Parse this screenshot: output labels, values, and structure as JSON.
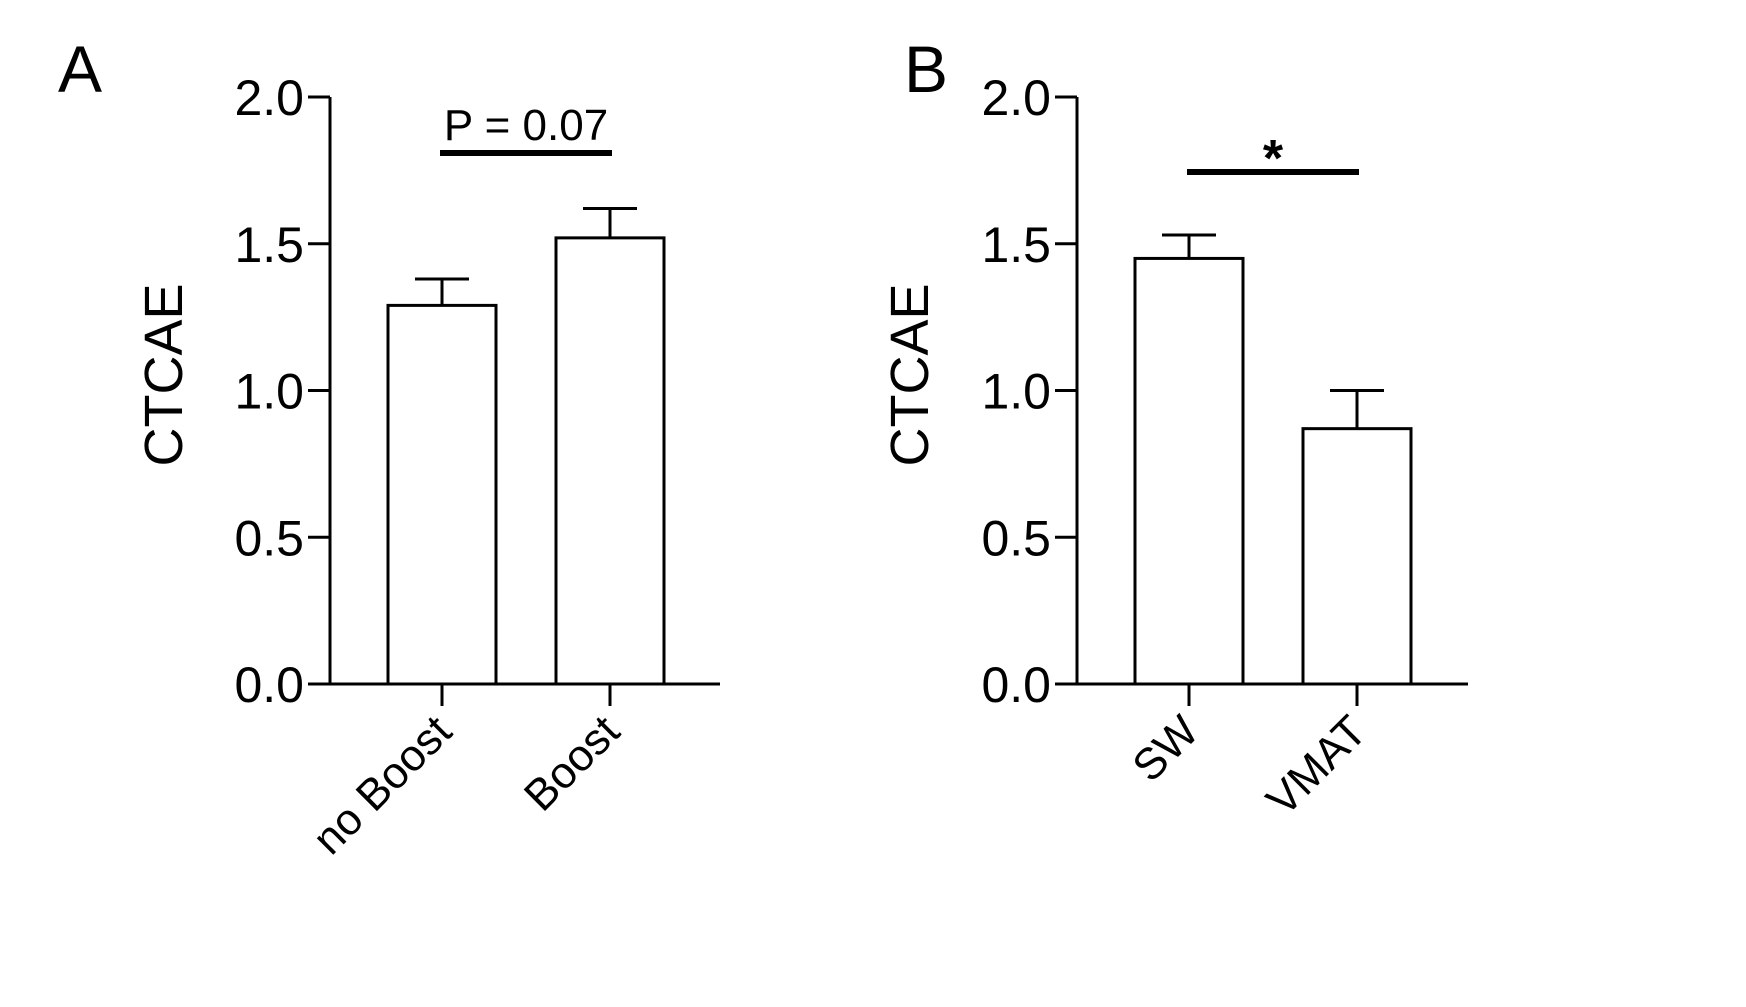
{
  "chart_data": [
    {
      "panel": "A",
      "type": "bar",
      "categories": [
        "no Boost",
        "Boost"
      ],
      "values": [
        1.29,
        1.52
      ],
      "error_upper": [
        0.09,
        0.1
      ],
      "ylabel": "CTCAE",
      "xlabel": "",
      "title": "",
      "ylim": [
        0,
        2.0
      ],
      "yticks": [
        "0.0",
        "0.5",
        "1.0",
        "1.5",
        "2.0"
      ],
      "annotation": {
        "text": "P = 0.07",
        "between": [
          0,
          1
        ]
      },
      "grid": false,
      "colors": {
        "bar_fill": "#ffffff",
        "bar_stroke": "#000000"
      }
    },
    {
      "panel": "B",
      "type": "bar",
      "categories": [
        "SW",
        "VMAT"
      ],
      "values": [
        1.45,
        0.87
      ],
      "error_upper": [
        0.08,
        0.13
      ],
      "ylabel": "CTCAE",
      "xlabel": "",
      "title": "",
      "ylim": [
        0,
        2.0
      ],
      "yticks": [
        "0.0",
        "0.5",
        "1.0",
        "1.5",
        "2.0"
      ],
      "annotation": {
        "text": "*",
        "between": [
          0,
          1
        ]
      },
      "grid": false,
      "colors": {
        "bar_fill": "#ffffff",
        "bar_stroke": "#000000"
      }
    }
  ]
}
